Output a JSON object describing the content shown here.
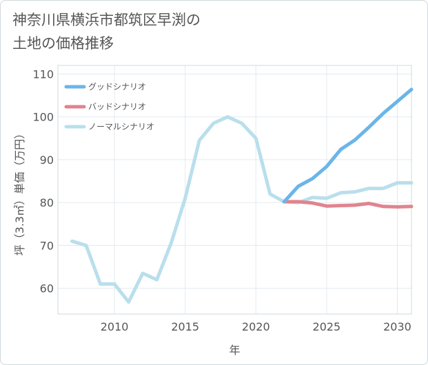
{
  "page": {
    "title_line1": "神奈川県横浜市都筑区早渕の",
    "title_line2": "土地の価格推移"
  },
  "chart_data": {
    "type": "line",
    "title": "神奈川県横浜市都筑区早渕の土地の価格推移",
    "xlabel": "年",
    "ylabel": "坪（3.3㎡）単価（万円）",
    "xlim": [
      2006,
      2031
    ],
    "ylim": [
      54,
      112
    ],
    "xticks": [
      2010,
      2015,
      2020,
      2025,
      2030
    ],
    "yticks": [
      60,
      70,
      80,
      90,
      100,
      110
    ],
    "grid": true,
    "legend_position": "top-left",
    "series": [
      {
        "name": "グッドシナリオ",
        "color": "#6bb5e8",
        "x": [
          2022,
          2023,
          2024,
          2025,
          2026,
          2027,
          2028,
          2029,
          2030,
          2031
        ],
        "y": [
          80.2,
          83.8,
          85.6,
          88.4,
          92.4,
          94.6,
          97.6,
          100.8,
          103.6,
          106.4
        ]
      },
      {
        "name": "バッドシナリオ",
        "color": "#e0848f",
        "x": [
          2022,
          2023,
          2024,
          2025,
          2026,
          2027,
          2028,
          2029,
          2030,
          2031
        ],
        "y": [
          80.2,
          80.2,
          79.9,
          79.2,
          79.3,
          79.4,
          79.8,
          79.1,
          79.0,
          79.1
        ]
      },
      {
        "name": "ノーマルシナリオ",
        "color": "#b9dfec",
        "x": [
          2007,
          2008,
          2009,
          2010,
          2011,
          2012,
          2013,
          2014,
          2015,
          2016,
          2017,
          2018,
          2019,
          2020,
          2021,
          2022,
          2023,
          2024,
          2025,
          2026,
          2027,
          2028,
          2029,
          2030,
          2031
        ],
        "y": [
          71.0,
          70.0,
          61.0,
          61.0,
          56.8,
          63.5,
          62.0,
          70.5,
          81.0,
          94.5,
          98.5,
          100.0,
          98.5,
          95.0,
          82.0,
          80.2,
          80.0,
          81.2,
          81.0,
          82.3,
          82.5,
          83.3,
          83.3,
          84.6,
          84.6
        ]
      }
    ]
  }
}
